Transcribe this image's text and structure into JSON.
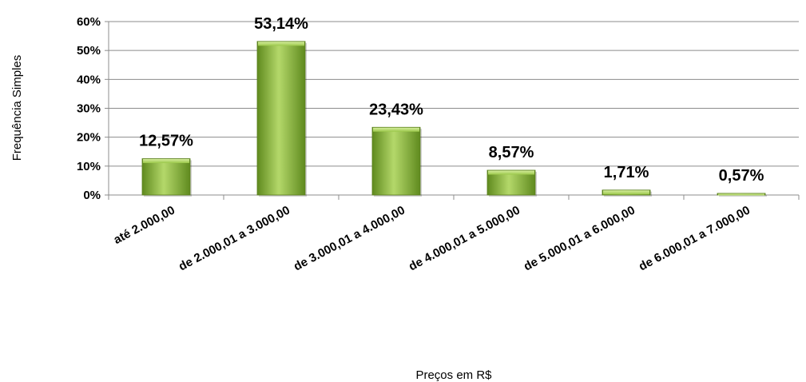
{
  "chart_data": {
    "type": "bar",
    "title": "",
    "xlabel": "Preços em R$",
    "ylabel": "Frequência Simples",
    "categories": [
      "até 2.000,00",
      "de 2.000,01 a 3.000,00",
      "de 3.000,01 a 4.000,00",
      "de 4.000,01 a 5.000,00",
      "de 5.000,01 a 6.000,00",
      "de 6.000,01 a 7.000,00"
    ],
    "values": [
      12.57,
      53.14,
      23.43,
      8.57,
      1.71,
      0.57
    ],
    "data_labels": [
      "12,57%",
      "53,14%",
      "23,43%",
      "8,57%",
      "1,71%",
      "0,57%"
    ],
    "ylim": [
      0,
      60
    ],
    "yticks": [
      0,
      10,
      20,
      30,
      40,
      50,
      60
    ],
    "ytick_labels": [
      "0%",
      "10%",
      "20%",
      "30%",
      "40%",
      "50%",
      "60%"
    ],
    "grid": true,
    "legend": "none",
    "bar_color": "#8fbf3a",
    "bar_color_dark": "#5f8a1e",
    "bar_color_light": "#b4d86a"
  }
}
